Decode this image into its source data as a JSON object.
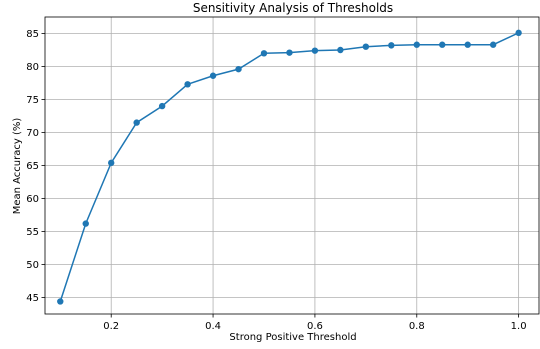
{
  "chart_data": {
    "type": "line",
    "title": "Sensitivity Analysis of Thresholds",
    "xlabel": "Strong Positive Threshold",
    "ylabel": "Mean Accuracy (%)",
    "xlim": [
      0.07,
      1.04
    ],
    "ylim": [
      42.5,
      87.5
    ],
    "xticks": [
      0.2,
      0.4,
      0.6,
      0.8,
      1.0
    ],
    "xtick_labels": [
      "0.2",
      "0.4",
      "0.6",
      "0.8",
      "1.0"
    ],
    "yticks": [
      45,
      50,
      55,
      60,
      65,
      70,
      75,
      80,
      85
    ],
    "ytick_labels": [
      "45",
      "50",
      "55",
      "60",
      "65",
      "70",
      "75",
      "80",
      "85"
    ],
    "grid": true,
    "series": [
      {
        "color": "#1f77b4",
        "marker": "circle",
        "x": [
          0.1,
          0.15,
          0.2,
          0.25,
          0.3,
          0.35,
          0.4,
          0.45,
          0.5,
          0.55,
          0.6,
          0.65,
          0.7,
          0.75,
          0.8,
          0.85,
          0.9,
          0.95,
          1.0
        ],
        "y": [
          44.4,
          56.2,
          65.4,
          71.5,
          74.0,
          77.3,
          78.6,
          79.6,
          82.0,
          82.1,
          82.4,
          82.5,
          83.0,
          83.2,
          83.3,
          83.3,
          83.3,
          83.3,
          85.1
        ]
      }
    ]
  }
}
